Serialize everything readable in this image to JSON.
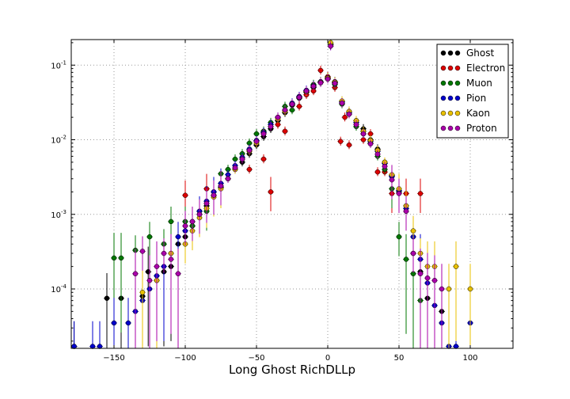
{
  "chart_data": {
    "type": "scatter",
    "title": "",
    "xlabel": "Long Ghost RichDLLp",
    "ylabel": "",
    "xlim": [
      -180,
      130
    ],
    "ylim": [
      1.6e-05,
      0.22
    ],
    "yscale": "log",
    "grid": true,
    "legend_position": "top-right",
    "x_ticks": [
      {
        "value": -150,
        "label": "−150"
      },
      {
        "value": -100,
        "label": "−100"
      },
      {
        "value": -50,
        "label": "−50"
      },
      {
        "value": 0,
        "label": "0"
      },
      {
        "value": 50,
        "label": "50"
      },
      {
        "value": 100,
        "label": "100"
      }
    ],
    "y_ticks": [
      {
        "value": 0.1,
        "base": "10",
        "exp": "-1"
      },
      {
        "value": 0.01,
        "base": "10",
        "exp": "-2"
      },
      {
        "value": 0.001,
        "base": "10",
        "exp": "-3"
      },
      {
        "value": 0.0001,
        "base": "10",
        "exp": "-4"
      }
    ],
    "series": [
      {
        "name": "Ghost",
        "color": "#000000",
        "points": [
          [
            -178,
            1.7e-05
          ],
          [
            -155,
            7.5e-05
          ],
          [
            -145,
            7.5e-05
          ],
          [
            -130,
            8e-05
          ],
          [
            -126,
            0.00017
          ],
          [
            -120,
            0.00013
          ],
          [
            -115,
            0.00017
          ],
          [
            -110,
            0.0002
          ],
          [
            -105,
            0.0004
          ],
          [
            -100,
            0.0005
          ],
          [
            -95,
            0.0007
          ],
          [
            -90,
            0.001
          ],
          [
            -85,
            0.0013
          ],
          [
            -80,
            0.0018
          ],
          [
            -75,
            0.0023
          ],
          [
            -70,
            0.003
          ],
          [
            -65,
            0.004
          ],
          [
            -60,
            0.005
          ],
          [
            -55,
            0.0065
          ],
          [
            -50,
            0.0085
          ],
          [
            -45,
            0.011
          ],
          [
            -40,
            0.014
          ],
          [
            -35,
            0.018
          ],
          [
            -30,
            0.023
          ],
          [
            -25,
            0.029
          ],
          [
            -20,
            0.036
          ],
          [
            -15,
            0.043
          ],
          [
            -10,
            0.05
          ],
          [
            -5,
            0.058
          ],
          [
            0,
            0.065
          ],
          [
            2,
            0.19
          ],
          [
            5,
            0.06
          ],
          [
            10,
            0.033
          ],
          [
            15,
            0.024
          ],
          [
            20,
            0.018
          ],
          [
            25,
            0.014
          ],
          [
            30,
            0.01
          ],
          [
            35,
            0.0075
          ],
          [
            40,
            0.005
          ],
          [
            45,
            0.0033
          ],
          [
            50,
            0.002
          ],
          [
            55,
            0.0013
          ],
          [
            60,
            0.0003
          ],
          [
            65,
            0.00017
          ],
          [
            70,
            7.5e-05
          ],
          [
            80,
            5e-05
          ]
        ]
      },
      {
        "name": "Electron",
        "color": "#dd0000",
        "points": [
          [
            -100,
            0.0018
          ],
          [
            -85,
            0.0022
          ],
          [
            -55,
            0.004
          ],
          [
            -45,
            0.0055
          ],
          [
            -45,
            0.013
          ],
          [
            -40,
            0.002
          ],
          [
            -35,
            0.016
          ],
          [
            -30,
            0.013
          ],
          [
            -25,
            0.03
          ],
          [
            -20,
            0.028
          ],
          [
            -15,
            0.04
          ],
          [
            -10,
            0.045
          ],
          [
            -5,
            0.085
          ],
          [
            0,
            0.07
          ],
          [
            2,
            0.19
          ],
          [
            5,
            0.05
          ],
          [
            9,
            0.0095
          ],
          [
            12,
            0.02
          ],
          [
            15,
            0.0085
          ],
          [
            20,
            0.018
          ],
          [
            25,
            0.01
          ],
          [
            30,
            0.012
          ],
          [
            35,
            0.0037
          ],
          [
            40,
            0.0037
          ],
          [
            45,
            0.0019
          ],
          [
            55,
            0.0019
          ],
          [
            65,
            0.0019
          ]
        ]
      },
      {
        "name": "Muon",
        "color": "#007700",
        "points": [
          [
            -150,
            0.00026
          ],
          [
            -145,
            0.00026
          ],
          [
            -135,
            0.00033
          ],
          [
            -125,
            0.0005
          ],
          [
            -115,
            0.0004
          ],
          [
            -110,
            0.0008
          ],
          [
            -100,
            0.0008
          ],
          [
            -95,
            0.0007
          ],
          [
            -90,
            0.0011
          ],
          [
            -85,
            0.0011
          ],
          [
            -80,
            0.002
          ],
          [
            -75,
            0.0035
          ],
          [
            -70,
            0.004
          ],
          [
            -65,
            0.0055
          ],
          [
            -60,
            0.0065
          ],
          [
            -55,
            0.009
          ],
          [
            -50,
            0.012
          ],
          [
            -45,
            0.013
          ],
          [
            -40,
            0.017
          ],
          [
            -35,
            0.02
          ],
          [
            -30,
            0.028
          ],
          [
            -25,
            0.025
          ],
          [
            -20,
            0.038
          ],
          [
            -15,
            0.045
          ],
          [
            -10,
            0.055
          ],
          [
            -5,
            0.06
          ],
          [
            0,
            0.068
          ],
          [
            2,
            0.19
          ],
          [
            5,
            0.055
          ],
          [
            10,
            0.03
          ],
          [
            15,
            0.022
          ],
          [
            20,
            0.015
          ],
          [
            25,
            0.012
          ],
          [
            30,
            0.009
          ],
          [
            35,
            0.006
          ],
          [
            40,
            0.004
          ],
          [
            45,
            0.0022
          ],
          [
            50,
            0.0005
          ],
          [
            55,
            0.00025
          ],
          [
            60,
            0.00016
          ],
          [
            65,
            7e-05
          ]
        ]
      },
      {
        "name": "Pion",
        "color": "#0000cc",
        "points": [
          [
            -178,
            1.7e-05
          ],
          [
            -165,
            1.7e-05
          ],
          [
            -160,
            1.7e-05
          ],
          [
            -150,
            3.5e-05
          ],
          [
            -140,
            3.5e-05
          ],
          [
            -135,
            5e-05
          ],
          [
            -130,
            7e-05
          ],
          [
            -125,
            0.0001
          ],
          [
            -120,
            0.00015
          ],
          [
            -115,
            0.0002
          ],
          [
            -110,
            0.0003
          ],
          [
            -105,
            0.0005
          ],
          [
            -100,
            0.0006
          ],
          [
            -95,
            0.0008
          ],
          [
            -90,
            0.0011
          ],
          [
            -85,
            0.0015
          ],
          [
            -80,
            0.002
          ],
          [
            -75,
            0.0026
          ],
          [
            -70,
            0.0034
          ],
          [
            -65,
            0.0045
          ],
          [
            -60,
            0.0058
          ],
          [
            -55,
            0.0075
          ],
          [
            -50,
            0.0098
          ],
          [
            -45,
            0.0125
          ],
          [
            -40,
            0.016
          ],
          [
            -35,
            0.02
          ],
          [
            -30,
            0.025
          ],
          [
            -25,
            0.031
          ],
          [
            -20,
            0.038
          ],
          [
            -15,
            0.046
          ],
          [
            -10,
            0.053
          ],
          [
            -5,
            0.06
          ],
          [
            0,
            0.066
          ],
          [
            2,
            0.18
          ],
          [
            5,
            0.058
          ],
          [
            10,
            0.032
          ],
          [
            15,
            0.023
          ],
          [
            20,
            0.017
          ],
          [
            25,
            0.013
          ],
          [
            30,
            0.0095
          ],
          [
            35,
            0.007
          ],
          [
            40,
            0.0048
          ],
          [
            45,
            0.0032
          ],
          [
            50,
            0.0021
          ],
          [
            55,
            0.0012
          ],
          [
            60,
            0.0005
          ],
          [
            65,
            0.00025
          ],
          [
            70,
            0.00012
          ],
          [
            75,
            6e-05
          ],
          [
            80,
            3.5e-05
          ],
          [
            85,
            1.7e-05
          ],
          [
            90,
            1.7e-05
          ],
          [
            100,
            3.5e-05
          ]
        ]
      },
      {
        "name": "Kaon",
        "color": "#e8c000",
        "points": [
          [
            -130,
            9e-05
          ],
          [
            -120,
            0.00013
          ],
          [
            -110,
            0.0003
          ],
          [
            -100,
            0.0004
          ],
          [
            -95,
            0.0006
          ],
          [
            -90,
            0.0009
          ],
          [
            -85,
            0.0012
          ],
          [
            -80,
            0.0017
          ],
          [
            -75,
            0.0022
          ],
          [
            -70,
            0.003
          ],
          [
            -65,
            0.004
          ],
          [
            -60,
            0.0055
          ],
          [
            -55,
            0.007
          ],
          [
            -50,
            0.009
          ],
          [
            -45,
            0.012
          ],
          [
            -40,
            0.015
          ],
          [
            -35,
            0.019
          ],
          [
            -30,
            0.024
          ],
          [
            -25,
            0.03
          ],
          [
            -20,
            0.037
          ],
          [
            -15,
            0.044
          ],
          [
            -10,
            0.052
          ],
          [
            -5,
            0.059
          ],
          [
            0,
            0.067
          ],
          [
            2,
            0.2
          ],
          [
            5,
            0.059
          ],
          [
            10,
            0.033
          ],
          [
            15,
            0.024
          ],
          [
            20,
            0.018
          ],
          [
            25,
            0.013
          ],
          [
            30,
            0.0098
          ],
          [
            35,
            0.0072
          ],
          [
            40,
            0.005
          ],
          [
            45,
            0.0034
          ],
          [
            50,
            0.0022
          ],
          [
            55,
            0.0013
          ],
          [
            60,
            0.0006
          ],
          [
            65,
            0.0003
          ],
          [
            70,
            0.0002
          ],
          [
            75,
            0.0002
          ],
          [
            85,
            0.0001
          ],
          [
            90,
            0.0002
          ],
          [
            100,
            0.0001
          ]
        ]
      },
      {
        "name": "Proton",
        "color": "#aa00aa",
        "points": [
          [
            -135,
            0.00016
          ],
          [
            -130,
            0.00032
          ],
          [
            -125,
            0.00013
          ],
          [
            -120,
            0.0002
          ],
          [
            -115,
            0.0003
          ],
          [
            -110,
            0.00025
          ],
          [
            -105,
            0.00016
          ],
          [
            -100,
            0.0007
          ],
          [
            -95,
            0.0008
          ],
          [
            -90,
            0.001
          ],
          [
            -85,
            0.0014
          ],
          [
            -80,
            0.0018
          ],
          [
            -75,
            0.0024
          ],
          [
            -70,
            0.003
          ],
          [
            -65,
            0.0042
          ],
          [
            -60,
            0.0055
          ],
          [
            -55,
            0.0072
          ],
          [
            -50,
            0.0095
          ],
          [
            -45,
            0.012
          ],
          [
            -40,
            0.015
          ],
          [
            -35,
            0.02
          ],
          [
            -30,
            0.025
          ],
          [
            -25,
            0.03
          ],
          [
            -20,
            0.037
          ],
          [
            -15,
            0.045
          ],
          [
            -10,
            0.052
          ],
          [
            -5,
            0.058
          ],
          [
            0,
            0.065
          ],
          [
            2,
            0.18
          ],
          [
            5,
            0.057
          ],
          [
            10,
            0.031
          ],
          [
            15,
            0.022
          ],
          [
            20,
            0.016
          ],
          [
            25,
            0.012
          ],
          [
            30,
            0.0088
          ],
          [
            35,
            0.0064
          ],
          [
            40,
            0.0044
          ],
          [
            45,
            0.0029
          ],
          [
            50,
            0.0019
          ],
          [
            55,
            0.0011
          ],
          [
            60,
            0.0003
          ],
          [
            65,
            0.00016
          ],
          [
            70,
            0.00014
          ],
          [
            75,
            0.00013
          ],
          [
            80,
            0.0001
          ]
        ]
      }
    ]
  }
}
